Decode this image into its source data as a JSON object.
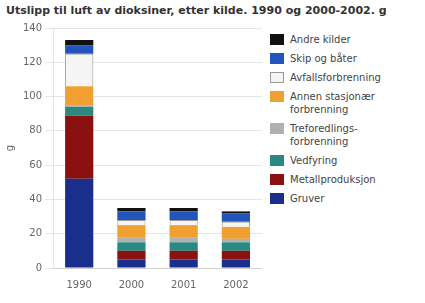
{
  "chart_data": {
    "type": "bar",
    "title": "Utslipp til luft av dioksiner, etter kilde. 1990 og 2000-2002. g",
    "ylabel": "g",
    "categories": [
      "1990",
      "2000",
      "2001",
      "2002"
    ],
    "series": [
      {
        "name": "Gruver",
        "color": "#1a2f8c",
        "values": [
          52,
          5,
          5,
          5
        ]
      },
      {
        "name": "Metallproduksjon",
        "color": "#8b1010",
        "values": [
          37,
          5,
          5,
          5
        ]
      },
      {
        "name": "Vedfyring",
        "color": "#2a8a82",
        "values": [
          5,
          5,
          5,
          5
        ]
      },
      {
        "name": "Treforedlings-\nforbrenning",
        "color": "#b0b0b0",
        "values": [
          1,
          3,
          3,
          2
        ]
      },
      {
        "name": "Annen stasjonær\nforbrenning",
        "color": "#f0a030",
        "values": [
          11,
          7,
          7,
          7
        ]
      },
      {
        "name": "Avfallsforbrenning",
        "color": "#f5f5f5",
        "values": [
          19,
          3,
          3,
          3
        ]
      },
      {
        "name": "Skip og båter",
        "color": "#2255bb",
        "values": [
          5,
          5,
          5,
          5
        ]
      },
      {
        "name": "Andre kilder",
        "color": "#111111",
        "values": [
          3,
          2,
          2,
          1
        ]
      }
    ],
    "stacked": true,
    "ylim": [
      0,
      140
    ],
    "yticks": [
      0,
      20,
      40,
      60,
      80,
      100,
      120,
      140
    ],
    "grid": true,
    "legend": "right"
  }
}
